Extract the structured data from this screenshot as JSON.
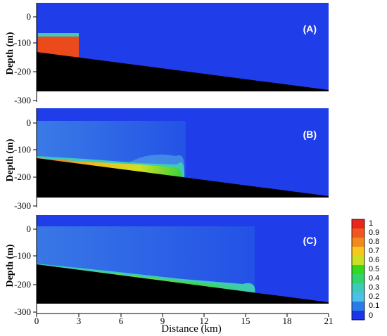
{
  "chart_data": [
    {
      "type": "heatmap",
      "panel_label": "(A)",
      "ylabel": "Depth (m)",
      "yticks": [
        "0",
        "-100",
        "-200",
        "-300"
      ],
      "ylim": [
        -300,
        25
      ],
      "xlim": [
        0,
        21
      ],
      "description_fields": {
        "seabed_depth_at_0_km_m": -125,
        "seabed_depth_at_21_km_m": -265,
        "dense_water_lock": {
          "x_range_km": [
            0,
            3
          ],
          "depth_range_m": [
            -65,
            -145
          ],
          "concentration": 0.95
        },
        "background_concentration": 0.0
      }
    },
    {
      "type": "heatmap",
      "panel_label": "(B)",
      "ylabel": "Depth (m)",
      "yticks": [
        "0",
        "-100",
        "-200",
        "-300"
      ],
      "ylim": [
        -300,
        25
      ],
      "xlim": [
        0,
        21
      ],
      "description_fields": {
        "current_head_position_km": 10.7,
        "max_concentration_near_source": 0.85,
        "head_concentration": 0.6
      }
    },
    {
      "type": "heatmap",
      "panel_label": "(C)",
      "ylabel": "Depth (m)",
      "yticks": [
        "0",
        "-100",
        "-200",
        "-300"
      ],
      "ylim": [
        -300,
        25
      ],
      "xlim": [
        0,
        21
      ],
      "xlabel": "Distance (km)",
      "xticks": [
        "0",
        "3",
        "6",
        "9",
        "12",
        "15",
        "18",
        "21"
      ],
      "description_fields": {
        "current_head_position_km": 15.5,
        "max_concentration_in_current": 0.7
      }
    }
  ],
  "colorbar": {
    "ticks": [
      "1",
      "0.9",
      "0.8",
      "0.7",
      "0.6",
      "0.5",
      "0.4",
      "0.3",
      "0.2",
      "0.1",
      "0"
    ],
    "colors": [
      "#e8261a",
      "#f2561e",
      "#f08a1f",
      "#f6c81e",
      "#c9e024",
      "#34d81c",
      "#30d46b",
      "#3ec9b8",
      "#4cc0e6",
      "#2a7de8",
      "#1a36e8"
    ]
  },
  "colors": {
    "water": "#1f3de8",
    "seabed": "#000000"
  }
}
